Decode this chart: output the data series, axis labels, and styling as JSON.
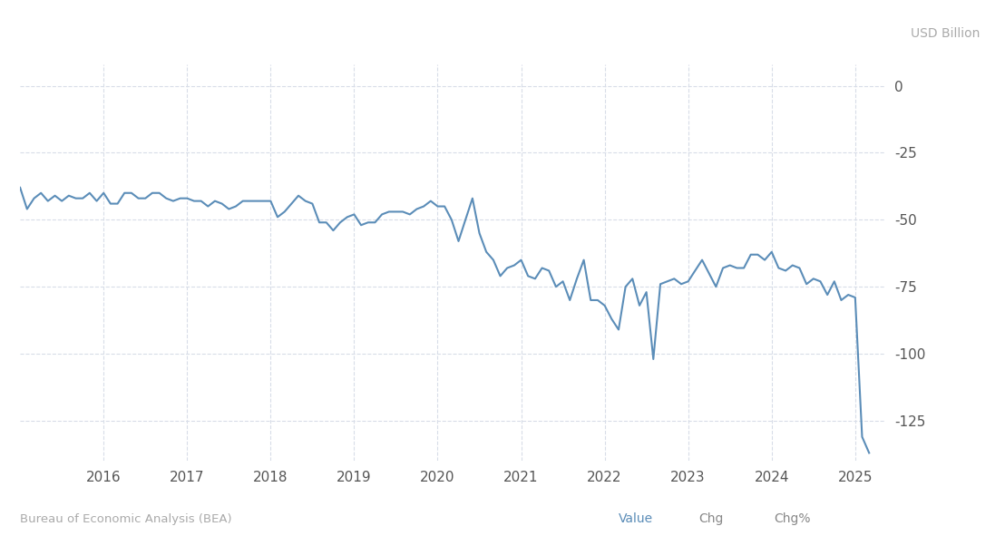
{
  "ylabel": "USD Billion",
  "source_text": "Bureau of Economic Analysis (BEA)",
  "value_label": "Value",
  "chg_label": "Chg",
  "chgpct_label": "Chg%",
  "line_color": "#5b8db8",
  "background_color": "#ffffff",
  "plot_bg_color": "#ffffff",
  "grid_color": "#d8dde8",
  "ylim": [
    -140,
    8
  ],
  "yticks": [
    0,
    -25,
    -50,
    -75,
    -100,
    -125
  ],
  "x_start_year": 2015.0,
  "x_end_year": 2025.35,
  "xtick_years": [
    2016,
    2017,
    2018,
    2019,
    2020,
    2021,
    2022,
    2023,
    2024,
    2025
  ],
  "data": {
    "dates": [
      2015.0,
      2015.083,
      2015.167,
      2015.25,
      2015.333,
      2015.417,
      2015.5,
      2015.583,
      2015.667,
      2015.75,
      2015.833,
      2015.917,
      2016.0,
      2016.083,
      2016.167,
      2016.25,
      2016.333,
      2016.417,
      2016.5,
      2016.583,
      2016.667,
      2016.75,
      2016.833,
      2016.917,
      2017.0,
      2017.083,
      2017.167,
      2017.25,
      2017.333,
      2017.417,
      2017.5,
      2017.583,
      2017.667,
      2017.75,
      2017.833,
      2017.917,
      2018.0,
      2018.083,
      2018.167,
      2018.25,
      2018.333,
      2018.417,
      2018.5,
      2018.583,
      2018.667,
      2018.75,
      2018.833,
      2018.917,
      2019.0,
      2019.083,
      2019.167,
      2019.25,
      2019.333,
      2019.417,
      2019.5,
      2019.583,
      2019.667,
      2019.75,
      2019.833,
      2019.917,
      2020.0,
      2020.083,
      2020.167,
      2020.25,
      2020.333,
      2020.417,
      2020.5,
      2020.583,
      2020.667,
      2020.75,
      2020.833,
      2020.917,
      2021.0,
      2021.083,
      2021.167,
      2021.25,
      2021.333,
      2021.417,
      2021.5,
      2021.583,
      2021.667,
      2021.75,
      2021.833,
      2021.917,
      2022.0,
      2022.083,
      2022.167,
      2022.25,
      2022.333,
      2022.417,
      2022.5,
      2022.583,
      2022.667,
      2022.75,
      2022.833,
      2022.917,
      2023.0,
      2023.083,
      2023.167,
      2023.25,
      2023.333,
      2023.417,
      2023.5,
      2023.583,
      2023.667,
      2023.75,
      2023.833,
      2023.917,
      2024.0,
      2024.083,
      2024.167,
      2024.25,
      2024.333,
      2024.417,
      2024.5,
      2024.583,
      2024.667,
      2024.75,
      2024.833,
      2024.917,
      2025.0,
      2025.083,
      2025.167
    ],
    "values": [
      -38,
      -46,
      -42,
      -40,
      -43,
      -41,
      -43,
      -41,
      -42,
      -42,
      -40,
      -43,
      -40,
      -44,
      -44,
      -40,
      -40,
      -42,
      -42,
      -40,
      -40,
      -42,
      -43,
      -42,
      -42,
      -43,
      -43,
      -45,
      -43,
      -44,
      -46,
      -45,
      -43,
      -43,
      -43,
      -43,
      -43,
      -49,
      -47,
      -44,
      -41,
      -43,
      -44,
      -51,
      -51,
      -54,
      -51,
      -49,
      -48,
      -52,
      -51,
      -51,
      -48,
      -47,
      -47,
      -47,
      -48,
      -46,
      -45,
      -43,
      -45,
      -45,
      -50,
      -58,
      -50,
      -42,
      -55,
      -62,
      -65,
      -71,
      -68,
      -67,
      -65,
      -71,
      -72,
      -68,
      -69,
      -75,
      -73,
      -80,
      -72,
      -65,
      -80,
      -80,
      -82,
      -87,
      -91,
      -75,
      -72,
      -82,
      -77,
      -102,
      -74,
      -73,
      -72,
      -74,
      -73,
      -69,
      -65,
      -70,
      -75,
      -68,
      -67,
      -68,
      -68,
      -63,
      -63,
      -65,
      -62,
      -68,
      -69,
      -67,
      -68,
      -74,
      -72,
      -73,
      -78,
      -73,
      -80,
      -78,
      -79,
      -131,
      -137
    ]
  }
}
